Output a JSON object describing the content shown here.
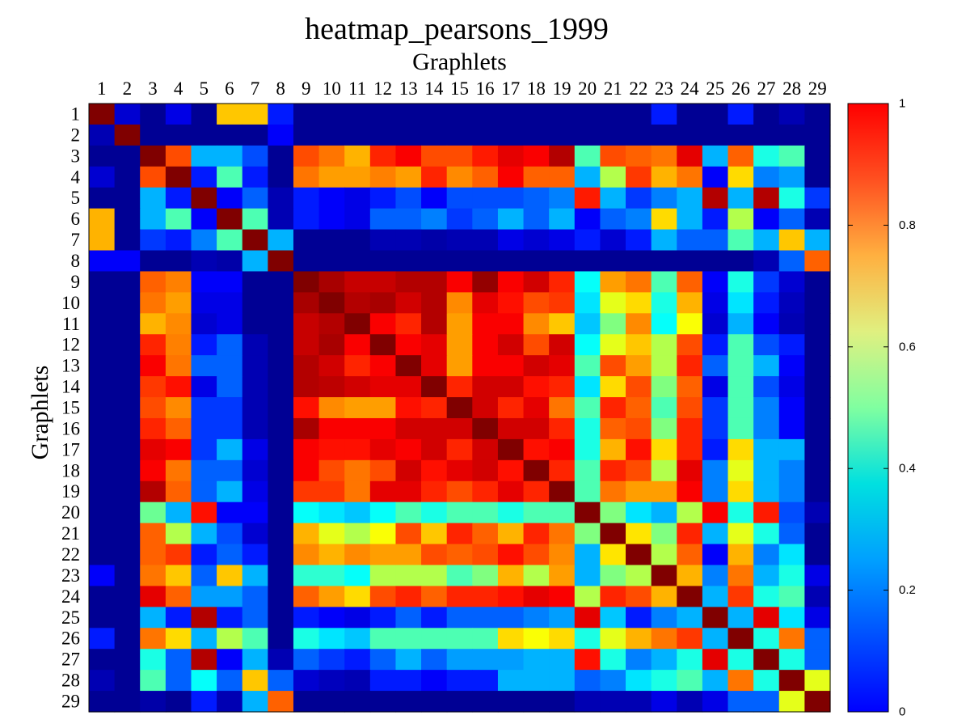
{
  "chart_data": {
    "type": "heatmap",
    "title": "heatmap_pearsons_1999",
    "xlabel": "Graphlets",
    "ylabel": "Graphlets",
    "x_ticks": [
      "1",
      "2",
      "3",
      "4",
      "5",
      "6",
      "7",
      "8",
      "9",
      "10",
      "11",
      "12",
      "13",
      "14",
      "15",
      "16",
      "17",
      "18",
      "19",
      "20",
      "21",
      "22",
      "23",
      "24",
      "25",
      "26",
      "27",
      "28",
      "29"
    ],
    "y_ticks": [
      "1",
      "2",
      "3",
      "4",
      "5",
      "6",
      "7",
      "8",
      "9",
      "10",
      "11",
      "12",
      "13",
      "14",
      "15",
      "16",
      "17",
      "18",
      "19",
      "20",
      "21",
      "22",
      "23",
      "24",
      "25",
      "26",
      "27",
      "28",
      "29"
    ],
    "colormap": "jet",
    "vmin": 0,
    "vmax": 1,
    "colorbar_ticks": [
      "0",
      "0.2",
      "0.4",
      "0.6",
      "0.8",
      "1"
    ],
    "values": [
      [
        1.0,
        0.08,
        0.02,
        0.1,
        0.02,
        0.68,
        0.68,
        0.15,
        0.02,
        0.02,
        0.02,
        0.02,
        0.02,
        0.02,
        0.02,
        0.02,
        0.02,
        0.02,
        0.02,
        0.02,
        0.02,
        0.02,
        0.15,
        0.02,
        0.02,
        0.15,
        0.02,
        0.05,
        0.02
      ],
      [
        0.05,
        1.0,
        0.02,
        0.02,
        0.02,
        0.02,
        0.02,
        0.12,
        0.02,
        0.02,
        0.02,
        0.02,
        0.02,
        0.02,
        0.02,
        0.02,
        0.02,
        0.02,
        0.02,
        0.02,
        0.02,
        0.02,
        0.02,
        0.02,
        0.02,
        0.02,
        0.02,
        0.02,
        0.02
      ],
      [
        0.02,
        0.02,
        1.0,
        0.8,
        0.3,
        0.3,
        0.2,
        0.02,
        0.8,
        0.76,
        0.7,
        0.84,
        0.88,
        0.8,
        0.8,
        0.85,
        0.9,
        0.88,
        0.95,
        0.45,
        0.8,
        0.78,
        0.76,
        0.9,
        0.3,
        0.78,
        0.4,
        0.45,
        0.02
      ],
      [
        0.08,
        0.02,
        0.8,
        1.0,
        0.15,
        0.45,
        0.15,
        0.02,
        0.76,
        0.72,
        0.72,
        0.75,
        0.72,
        0.84,
        0.74,
        0.78,
        0.88,
        0.78,
        0.78,
        0.3,
        0.55,
        0.82,
        0.7,
        0.76,
        0.12,
        0.66,
        0.25,
        0.28,
        0.02
      ],
      [
        0.02,
        0.02,
        0.3,
        0.15,
        1.0,
        0.12,
        0.22,
        0.05,
        0.15,
        0.12,
        0.1,
        0.15,
        0.2,
        0.12,
        0.2,
        0.2,
        0.2,
        0.22,
        0.25,
        0.85,
        0.3,
        0.18,
        0.25,
        0.3,
        0.95,
        0.3,
        0.95,
        0.4,
        0.18
      ],
      [
        0.7,
        0.02,
        0.3,
        0.45,
        0.12,
        1.0,
        0.45,
        0.05,
        0.15,
        0.12,
        0.1,
        0.22,
        0.22,
        0.25,
        0.18,
        0.22,
        0.3,
        0.22,
        0.3,
        0.12,
        0.22,
        0.25,
        0.66,
        0.3,
        0.15,
        0.55,
        0.12,
        0.22,
        0.05
      ],
      [
        0.7,
        0.02,
        0.18,
        0.15,
        0.25,
        0.45,
        1.0,
        0.3,
        0.02,
        0.02,
        0.02,
        0.05,
        0.05,
        0.04,
        0.05,
        0.05,
        0.1,
        0.08,
        0.1,
        0.15,
        0.08,
        0.15,
        0.3,
        0.22,
        0.22,
        0.45,
        0.3,
        0.68,
        0.3
      ],
      [
        0.12,
        0.12,
        0.02,
        0.02,
        0.05,
        0.04,
        0.3,
        1.0,
        0.02,
        0.02,
        0.02,
        0.02,
        0.02,
        0.02,
        0.02,
        0.02,
        0.02,
        0.02,
        0.02,
        0.02,
        0.02,
        0.02,
        0.02,
        0.02,
        0.02,
        0.02,
        0.05,
        0.22,
        0.78
      ],
      [
        0.02,
        0.02,
        0.78,
        0.75,
        0.12,
        0.12,
        0.02,
        0.02,
        1.0,
        0.96,
        0.93,
        0.93,
        0.95,
        0.95,
        0.88,
        0.98,
        0.88,
        0.92,
        0.84,
        0.38,
        0.72,
        0.76,
        0.45,
        0.78,
        0.12,
        0.4,
        0.18,
        0.08,
        0.02
      ],
      [
        0.02,
        0.02,
        0.76,
        0.72,
        0.1,
        0.1,
        0.02,
        0.02,
        0.96,
        1.0,
        0.95,
        0.96,
        0.92,
        0.95,
        0.74,
        0.9,
        0.86,
        0.8,
        0.82,
        0.35,
        0.6,
        0.66,
        0.4,
        0.7,
        0.1,
        0.35,
        0.15,
        0.06,
        0.02
      ],
      [
        0.02,
        0.02,
        0.7,
        0.74,
        0.08,
        0.1,
        0.02,
        0.02,
        0.93,
        0.95,
        1.0,
        0.88,
        0.84,
        0.95,
        0.72,
        0.88,
        0.88,
        0.74,
        0.68,
        0.32,
        0.5,
        0.74,
        0.38,
        0.62,
        0.08,
        0.3,
        0.12,
        0.05,
        0.02
      ],
      [
        0.02,
        0.02,
        0.84,
        0.75,
        0.15,
        0.22,
        0.05,
        0.02,
        0.93,
        0.96,
        0.88,
        1.0,
        0.88,
        0.9,
        0.72,
        0.88,
        0.92,
        0.8,
        0.92,
        0.38,
        0.6,
        0.68,
        0.55,
        0.8,
        0.15,
        0.45,
        0.2,
        0.15,
        0.02
      ],
      [
        0.02,
        0.02,
        0.88,
        0.76,
        0.22,
        0.22,
        0.05,
        0.02,
        0.95,
        0.92,
        0.84,
        0.88,
        1.0,
        0.9,
        0.72,
        0.88,
        0.88,
        0.92,
        0.9,
        0.45,
        0.8,
        0.72,
        0.55,
        0.84,
        0.22,
        0.45,
        0.3,
        0.12,
        0.02
      ],
      [
        0.02,
        0.02,
        0.82,
        0.86,
        0.1,
        0.22,
        0.05,
        0.02,
        0.95,
        0.94,
        0.92,
        0.9,
        0.9,
        1.0,
        0.84,
        0.92,
        0.92,
        0.86,
        0.84,
        0.35,
        0.66,
        0.8,
        0.5,
        0.78,
        0.1,
        0.45,
        0.2,
        0.1,
        0.02
      ],
      [
        0.02,
        0.02,
        0.8,
        0.74,
        0.18,
        0.18,
        0.05,
        0.02,
        0.86,
        0.74,
        0.72,
        0.72,
        0.86,
        0.84,
        1.0,
        0.92,
        0.84,
        0.9,
        0.76,
        0.45,
        0.84,
        0.78,
        0.45,
        0.8,
        0.18,
        0.45,
        0.25,
        0.12,
        0.02
      ],
      [
        0.02,
        0.02,
        0.84,
        0.78,
        0.18,
        0.18,
        0.05,
        0.02,
        0.96,
        0.88,
        0.88,
        0.88,
        0.92,
        0.92,
        0.92,
        1.0,
        0.92,
        0.92,
        0.84,
        0.4,
        0.78,
        0.8,
        0.5,
        0.84,
        0.18,
        0.45,
        0.25,
        0.12,
        0.02
      ],
      [
        0.02,
        0.02,
        0.9,
        0.88,
        0.18,
        0.3,
        0.1,
        0.02,
        0.88,
        0.86,
        0.86,
        0.9,
        0.88,
        0.92,
        0.84,
        0.92,
        1.0,
        0.86,
        0.88,
        0.4,
        0.7,
        0.86,
        0.66,
        0.84,
        0.15,
        0.66,
        0.3,
        0.3,
        0.02
      ],
      [
        0.02,
        0.02,
        0.88,
        0.76,
        0.22,
        0.22,
        0.08,
        0.02,
        0.88,
        0.8,
        0.76,
        0.8,
        0.92,
        0.86,
        0.9,
        0.92,
        0.86,
        1.0,
        0.84,
        0.45,
        0.84,
        0.8,
        0.55,
        0.9,
        0.25,
        0.6,
        0.3,
        0.25,
        0.02
      ],
      [
        0.02,
        0.02,
        0.95,
        0.78,
        0.22,
        0.3,
        0.1,
        0.02,
        0.82,
        0.82,
        0.76,
        0.9,
        0.9,
        0.84,
        0.8,
        0.84,
        0.9,
        0.84,
        1.0,
        0.45,
        0.76,
        0.72,
        0.72,
        0.88,
        0.25,
        0.66,
        0.3,
        0.25,
        0.02
      ],
      [
        0.02,
        0.02,
        0.48,
        0.3,
        0.86,
        0.12,
        0.12,
        0.02,
        0.38,
        0.35,
        0.32,
        0.38,
        0.45,
        0.4,
        0.45,
        0.45,
        0.4,
        0.45,
        0.45,
        1.0,
        0.5,
        0.35,
        0.3,
        0.55,
        0.88,
        0.4,
        0.85,
        0.2,
        0.05
      ],
      [
        0.02,
        0.02,
        0.78,
        0.55,
        0.3,
        0.2,
        0.08,
        0.02,
        0.7,
        0.6,
        0.55,
        0.62,
        0.8,
        0.68,
        0.84,
        0.78,
        0.7,
        0.84,
        0.76,
        0.5,
        1.0,
        0.65,
        0.5,
        0.84,
        0.3,
        0.6,
        0.4,
        0.22,
        0.02
      ],
      [
        0.02,
        0.02,
        0.78,
        0.82,
        0.15,
        0.22,
        0.15,
        0.02,
        0.74,
        0.7,
        0.74,
        0.72,
        0.72,
        0.8,
        0.78,
        0.8,
        0.86,
        0.8,
        0.74,
        0.3,
        0.65,
        1.0,
        0.55,
        0.78,
        0.12,
        0.7,
        0.25,
        0.35,
        0.02
      ],
      [
        0.12,
        0.02,
        0.76,
        0.68,
        0.22,
        0.68,
        0.3,
        0.02,
        0.42,
        0.42,
        0.38,
        0.55,
        0.55,
        0.55,
        0.45,
        0.5,
        0.7,
        0.55,
        0.72,
        0.3,
        0.5,
        0.55,
        1.0,
        0.7,
        0.25,
        0.76,
        0.3,
        0.4,
        0.1
      ],
      [
        0.02,
        0.02,
        0.9,
        0.78,
        0.28,
        0.28,
        0.22,
        0.02,
        0.78,
        0.72,
        0.66,
        0.8,
        0.84,
        0.78,
        0.84,
        0.84,
        0.86,
        0.9,
        0.88,
        0.55,
        0.84,
        0.8,
        0.7,
        1.0,
        0.3,
        0.82,
        0.4,
        0.45,
        0.05
      ],
      [
        0.02,
        0.02,
        0.3,
        0.15,
        0.95,
        0.15,
        0.22,
        0.02,
        0.15,
        0.12,
        0.1,
        0.15,
        0.22,
        0.15,
        0.22,
        0.22,
        0.22,
        0.25,
        0.28,
        0.9,
        0.32,
        0.15,
        0.25,
        0.3,
        1.0,
        0.3,
        0.9,
        0.35,
        0.1
      ],
      [
        0.15,
        0.02,
        0.76,
        0.66,
        0.3,
        0.55,
        0.45,
        0.02,
        0.4,
        0.35,
        0.32,
        0.45,
        0.45,
        0.45,
        0.45,
        0.45,
        0.66,
        0.62,
        0.66,
        0.4,
        0.6,
        0.7,
        0.76,
        0.82,
        0.3,
        1.0,
        0.4,
        0.76,
        0.22
      ],
      [
        0.02,
        0.02,
        0.4,
        0.22,
        0.95,
        0.12,
        0.3,
        0.05,
        0.22,
        0.18,
        0.15,
        0.22,
        0.3,
        0.22,
        0.28,
        0.28,
        0.28,
        0.3,
        0.3,
        0.86,
        0.4,
        0.25,
        0.3,
        0.4,
        0.9,
        0.4,
        1.0,
        0.4,
        0.22
      ],
      [
        0.05,
        0.02,
        0.45,
        0.22,
        0.38,
        0.22,
        0.68,
        0.22,
        0.08,
        0.06,
        0.05,
        0.15,
        0.15,
        0.12,
        0.15,
        0.15,
        0.3,
        0.3,
        0.3,
        0.22,
        0.25,
        0.35,
        0.4,
        0.45,
        0.3,
        0.76,
        0.4,
        1.0,
        0.6
      ],
      [
        0.02,
        0.02,
        0.04,
        0.02,
        0.15,
        0.05,
        0.3,
        0.78,
        0.02,
        0.02,
        0.02,
        0.02,
        0.02,
        0.02,
        0.02,
        0.02,
        0.02,
        0.02,
        0.02,
        0.05,
        0.05,
        0.05,
        0.1,
        0.05,
        0.1,
        0.22,
        0.22,
        0.6,
        1.0
      ]
    ]
  }
}
